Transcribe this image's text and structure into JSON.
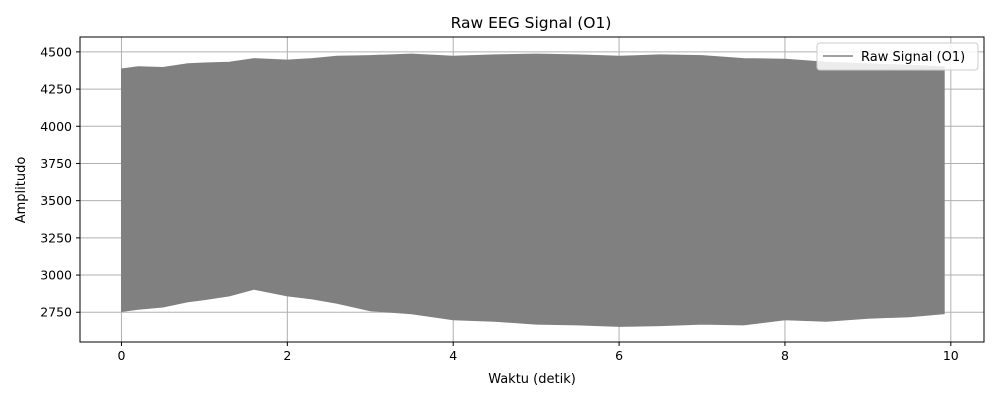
{
  "chart_data": {
    "type": "area",
    "title": "Raw EEG Signal (O1)",
    "xlabel": "Waktu (detik)",
    "ylabel": "Amplitudo",
    "xlim": [
      -0.5,
      10.4
    ],
    "ylim": [
      2550,
      4600
    ],
    "xticks": [
      0,
      2,
      4,
      6,
      8,
      10
    ],
    "yticks": [
      2750,
      3000,
      3250,
      3500,
      3750,
      4000,
      4250,
      4500
    ],
    "grid": true,
    "legend": {
      "position": "top-right",
      "entries": [
        "Raw Signal (O1)"
      ]
    },
    "series": [
      {
        "name": "Raw Signal (O1)",
        "color": "#808080",
        "x": [
          0.0,
          0.2,
          0.5,
          0.8,
          1.0,
          1.3,
          1.6,
          2.0,
          2.3,
          2.6,
          3.0,
          3.5,
          4.0,
          4.5,
          5.0,
          5.5,
          6.0,
          6.5,
          7.0,
          7.5,
          8.0,
          8.5,
          9.0,
          9.5,
          9.92
        ],
        "upper": [
          4385,
          4400,
          4395,
          4420,
          4425,
          4430,
          4455,
          4445,
          4455,
          4470,
          4475,
          4485,
          4470,
          4480,
          4485,
          4480,
          4470,
          4480,
          4475,
          4455,
          4450,
          4430,
          4420,
          4410,
          4400
        ],
        "lower": [
          2755,
          2770,
          2785,
          2820,
          2835,
          2860,
          2905,
          2860,
          2840,
          2810,
          2760,
          2740,
          2700,
          2690,
          2670,
          2665,
          2655,
          2660,
          2670,
          2665,
          2700,
          2690,
          2710,
          2720,
          2740
        ]
      }
    ]
  }
}
